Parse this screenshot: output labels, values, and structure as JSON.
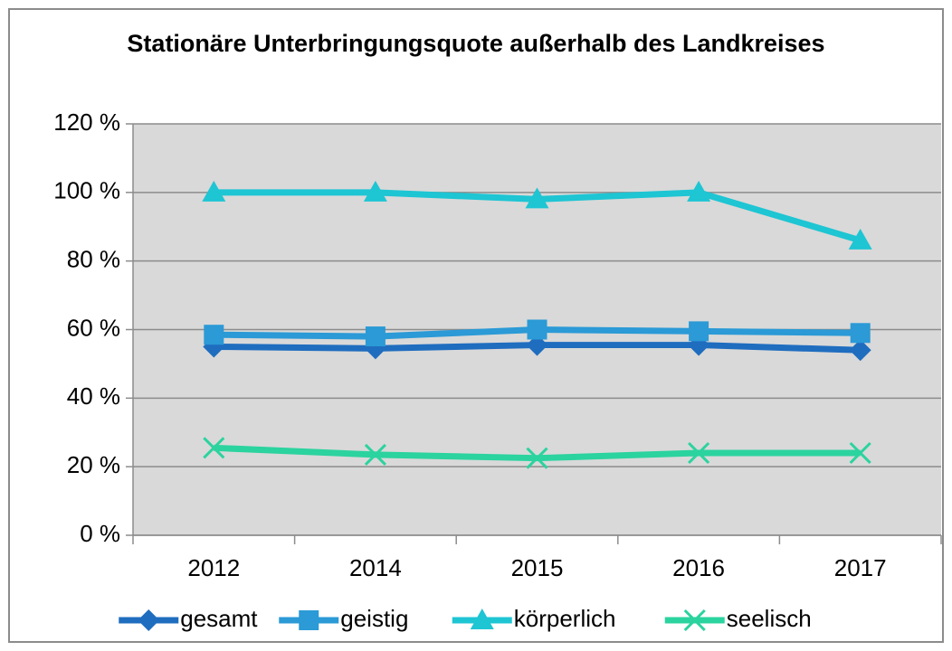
{
  "chart_data": {
    "type": "line",
    "title": "Stationäre Unterbringungsquote außerhalb des Landkreises",
    "categories": [
      "2012",
      "2014",
      "2015",
      "2016",
      "2017"
    ],
    "series": [
      {
        "name": "gesamt",
        "color": "#1f6dbf",
        "marker": "diamond",
        "values": [
          55,
          54.5,
          55.5,
          55.5,
          54
        ]
      },
      {
        "name": "geistig",
        "color": "#2b9ad6",
        "marker": "square",
        "values": [
          58.5,
          58,
          60,
          59.5,
          59
        ]
      },
      {
        "name": "körperlich",
        "color": "#1ec5d3",
        "marker": "triangle",
        "values": [
          100,
          100,
          98,
          100,
          86
        ]
      },
      {
        "name": "seelisch",
        "color": "#2bd39e",
        "marker": "x",
        "values": [
          25.5,
          23.5,
          22.5,
          24,
          24
        ]
      }
    ],
    "ylim": [
      0,
      120
    ],
    "yticks": [
      {
        "value": 0,
        "label": "0 %"
      },
      {
        "value": 20,
        "label": "20 %"
      },
      {
        "value": 40,
        "label": "40 %"
      },
      {
        "value": 60,
        "label": "60 %"
      },
      {
        "value": 80,
        "label": "80 %"
      },
      {
        "value": 100,
        "label": "100 %"
      },
      {
        "value": 120,
        "label": "120 %"
      }
    ],
    "grid": true,
    "legend": "bottom"
  }
}
